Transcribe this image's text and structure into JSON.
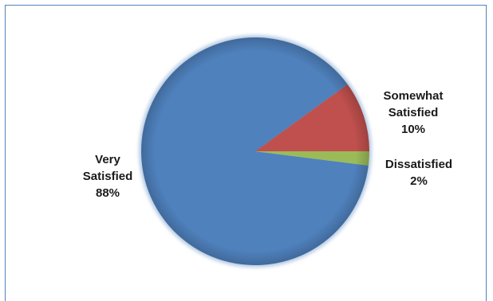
{
  "chart_data": {
    "type": "pie",
    "categories": [
      "Very Satisfied",
      "Somewhat Satisfied",
      "Dissatisfied"
    ],
    "values": [
      88,
      10,
      2
    ],
    "labels": [
      {
        "lines": [
          "Very",
          "Satisfied",
          "88%"
        ]
      },
      {
        "lines": [
          "Somewhat",
          "Satisfied",
          "10%"
        ]
      },
      {
        "lines": [
          "Dissatisfied",
          "2%"
        ]
      }
    ],
    "colors": [
      "#4f81bd",
      "#c0504d",
      "#9bbb59"
    ],
    "legend": "none",
    "title": ""
  }
}
